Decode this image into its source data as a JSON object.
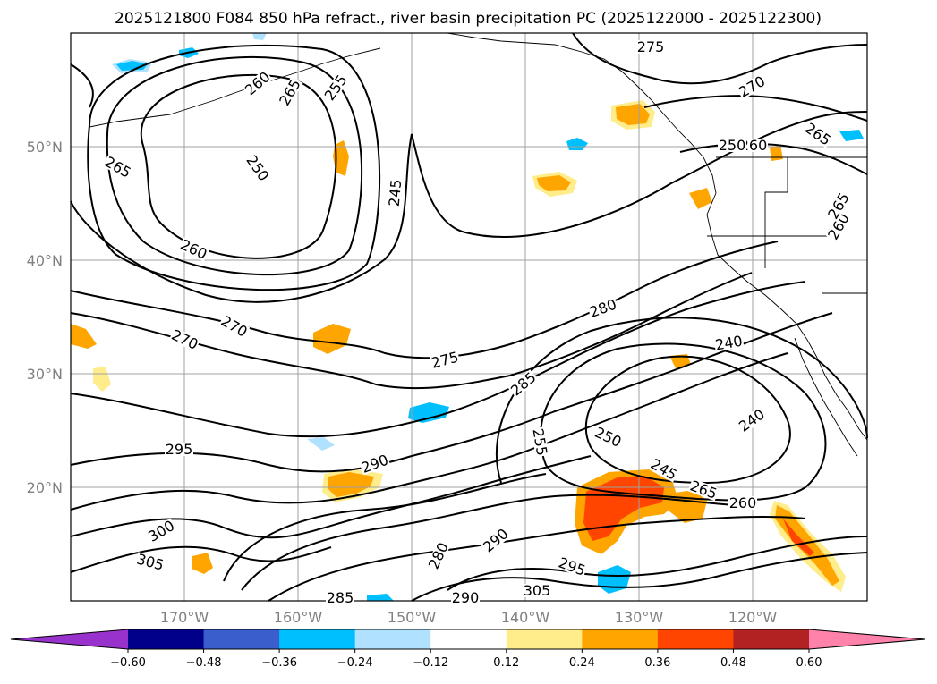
{
  "title": "2025121800 F084 850 hPa refract., river basin precipitation PC (2025122000 - 2025122300)",
  "map": {
    "lon_range": [
      -180,
      -110
    ],
    "lat_range": [
      10,
      60
    ],
    "lon_ticks": [
      "170°W",
      "160°W",
      "150°W",
      "140°W",
      "130°W",
      "120°W"
    ],
    "lat_ticks": [
      "50°N",
      "40°N",
      "30°N",
      "20°N"
    ],
    "gridlines": true,
    "colors": {
      "land_outline": "#000000",
      "grid": "#a0a0a0",
      "contour": "#000000"
    }
  },
  "contour_labels": [
    "275",
    "260",
    "270",
    "265",
    "260",
    "255",
    "265",
    "250",
    "245",
    "265",
    "260",
    "280",
    "270",
    "240",
    "270",
    "275",
    "285",
    "255",
    "250",
    "240",
    "245",
    "295",
    "290",
    "265",
    "260",
    "300",
    "290",
    "280",
    "295",
    "305",
    "305",
    "285",
    "290",
    "260",
    "265",
    "250"
  ],
  "colorbar": {
    "ticks": [
      "−0.60",
      "−0.48",
      "−0.36",
      "−0.24",
      "−0.12",
      "0.12",
      "0.24",
      "0.36",
      "0.48",
      "0.60"
    ],
    "colors": [
      "#9932cc",
      "#00008b",
      "#3a5fcd",
      "#00bfff",
      "#b0e2ff",
      "#ffffff",
      "#ffec8b",
      "#ffa500",
      "#ff4500",
      "#b22222",
      "#ff82ab"
    ],
    "extend": "both"
  }
}
